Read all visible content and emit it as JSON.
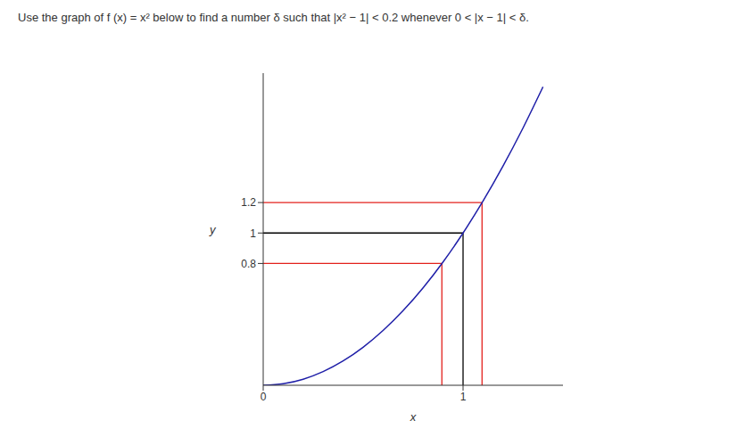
{
  "chart_data": {
    "type": "line",
    "title": "Use the graph of f (x) = x² below to find a number δ such that |x² − 1| < 0.2 whenever 0 < |x − 1| < δ.",
    "x_label": "x",
    "y_label": "y",
    "xlim": [
      0,
      1.5
    ],
    "ylim": [
      0,
      2.05
    ],
    "xticks": [
      0,
      1
    ],
    "yticks": [
      0.8,
      1,
      1.2
    ],
    "grid": false,
    "series": [
      {
        "name": "f (x) = x²",
        "color": "#1f1fa8",
        "x": [
          0,
          0.1,
          0.2,
          0.3,
          0.4,
          0.5,
          0.6,
          0.7,
          0.8,
          0.9,
          1,
          1.1,
          1.2,
          1.3,
          1.4
        ],
        "values": [
          0,
          0.01,
          0.04,
          0.09,
          0.16,
          0.25,
          0.36,
          0.49,
          0.64,
          0.81,
          1,
          1.21,
          1.44,
          1.69,
          1.96
        ]
      }
    ],
    "guides": [
      {
        "x": 0.894,
        "y": 0.8,
        "color": "#e3211c"
      },
      {
        "x": 1.095,
        "y": 1.2,
        "color": "#e3211c"
      },
      {
        "x": 1,
        "y": 1,
        "color": "#000000"
      }
    ]
  }
}
